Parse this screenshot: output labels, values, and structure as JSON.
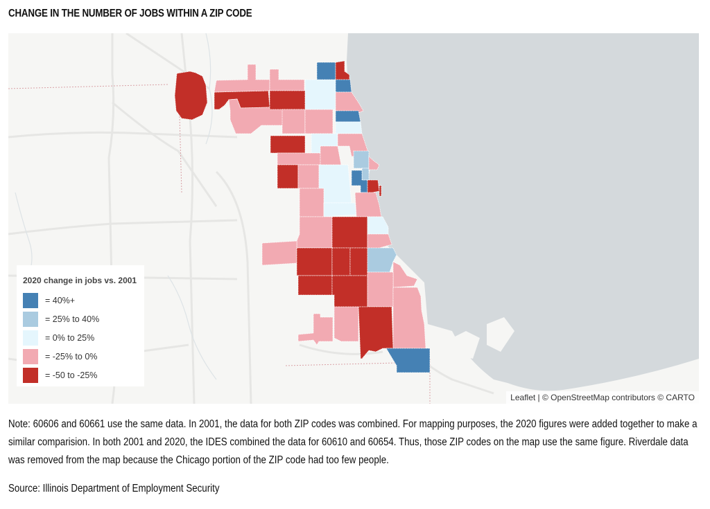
{
  "title": "CHANGE IN THE NUMBER OF JOBS WITHIN A ZIP CODE",
  "colors": {
    "c40plus": "#4581b4",
    "c25to40": "#aacbe0",
    "c0to25": "#e5f6fd",
    "cneg25to0": "#f2aab2",
    "cneg50to25": "#c22f28",
    "lake": "#d4d9dc",
    "land": "#f6f6f4"
  },
  "legend": {
    "title": "2020 change in jobs vs. 2001",
    "items": [
      {
        "label": "= 40%+",
        "color": "#4581b4"
      },
      {
        "label": "= 25% to 40%",
        "color": "#aacbe0"
      },
      {
        "label": "= 0% to 25%",
        "color": "#e5f6fd"
      },
      {
        "label": "= -25% to 0%",
        "color": "#f2aab2"
      },
      {
        "label": "= -50 to -25%",
        "color": "#c22f28"
      }
    ]
  },
  "attribution": {
    "leaflet": "Leaflet",
    "separator": " | © ",
    "osm": "OpenStreetMap",
    "rest": " contributors © CARTO"
  },
  "note": "Note: 60606 and 60661 use the same data. In 2001, the data for both ZIP codes was combined. For mapping purposes, the 2020 figures were added together to make a similar comparision. In both 2001 and 2020, the IDES combined the data for 60610 and 60654. Thus, those ZIP codes on the map use the same figure. Riverdale data was removed from the map because the Chicago portion of the ZIP code had too few people.",
  "source": "Source: Illinois Department of Employment Security"
}
